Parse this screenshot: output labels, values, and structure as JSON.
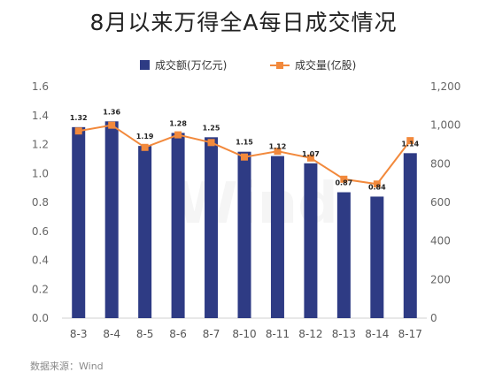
{
  "chart_data": {
    "type": "bar",
    "title": "8月以来万得全A每日成交情况",
    "categories": [
      "8-3",
      "8-4",
      "8-5",
      "8-6",
      "8-7",
      "8-10",
      "8-11",
      "8-12",
      "8-13",
      "8-14",
      "8-17"
    ],
    "series": [
      {
        "name": "成交额(万亿元)",
        "type": "bar",
        "axis": "left",
        "color": "#2e3b84",
        "values": [
          1.32,
          1.36,
          1.19,
          1.28,
          1.25,
          1.15,
          1.12,
          1.07,
          0.87,
          0.84,
          1.14
        ],
        "labels": [
          "1.32",
          "1.36",
          "1.19",
          "1.28",
          "1.25",
          "1.15",
          "1.12",
          "1.07",
          "0.87",
          "0.84",
          "1.14"
        ]
      },
      {
        "name": "成交量(亿股)",
        "type": "line",
        "axis": "right",
        "color": "#f2893c",
        "values": [
          970,
          1000,
          885,
          950,
          910,
          835,
          865,
          830,
          720,
          695,
          920
        ]
      }
    ],
    "y_left": {
      "ylim": [
        0,
        1.6
      ],
      "ticks": [
        "0.0",
        "0.2",
        "0.4",
        "0.6",
        "0.8",
        "1.0",
        "1.2",
        "1.4",
        "1.6"
      ]
    },
    "y_right": {
      "ylim": [
        0,
        1200
      ],
      "ticks": [
        "0",
        "200",
        "400",
        "600",
        "800",
        "1,000",
        "1,200"
      ]
    },
    "legend_position": "top-center",
    "grid": false,
    "source": "数据来源：Wind",
    "watermark": "Wind"
  }
}
